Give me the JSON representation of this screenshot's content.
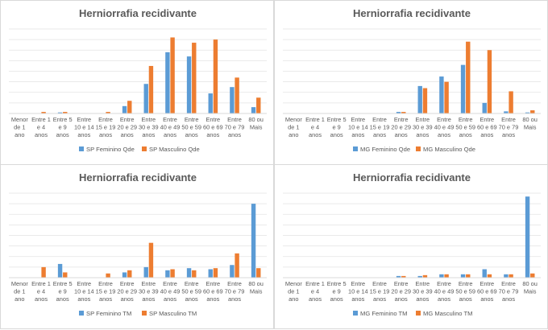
{
  "chart_data": [
    {
      "type": "bar",
      "title": "Herniorrafia recidivante",
      "categories": [
        [
          "Menor",
          "de 1",
          "ano"
        ],
        [
          "Entre 1",
          "e 4",
          "anos"
        ],
        [
          "Entre 5",
          "e 9",
          "anos"
        ],
        [
          "Entre",
          "10 e 14",
          "anos"
        ],
        [
          "Entre",
          "15 e 19",
          "anos"
        ],
        [
          "Entre",
          "20 e 29",
          "anos"
        ],
        [
          "Entre",
          "30 e 39",
          "anos"
        ],
        [
          "Entre",
          "40 e 49",
          "anos"
        ],
        [
          "Entre",
          "50 e 59",
          "anos"
        ],
        [
          "Entre",
          "60 e 69",
          "anos"
        ],
        [
          "Entre",
          "70 e 79",
          "anos"
        ],
        [
          "80 ou",
          "Mais"
        ]
      ],
      "series": [
        {
          "name": "SP Feminino Qde",
          "color": "#5b9bd5",
          "values": [
            0,
            0,
            1,
            0,
            0,
            7,
            28,
            58,
            54,
            19,
            25,
            6
          ]
        },
        {
          "name": "SP Masculino Qde",
          "color": "#ed7d31",
          "values": [
            0,
            1.5,
            1.5,
            0,
            1.5,
            12,
            45,
            72,
            67,
            70,
            34,
            15
          ]
        }
      ],
      "ylim": [
        0,
        80
      ],
      "grid": true,
      "legend": "bottom"
    },
    {
      "type": "bar",
      "title": "Herniorrafia recidivante",
      "categories": [
        [
          "Menor",
          "de 1",
          "ano"
        ],
        [
          "Entre 1",
          "e 4",
          "anos"
        ],
        [
          "Entre 5",
          "e 9",
          "anos"
        ],
        [
          "Entre",
          "10 e 14",
          "anos"
        ],
        [
          "Entre",
          "15 e 19",
          "anos"
        ],
        [
          "Entre",
          "20 e 29",
          "anos"
        ],
        [
          "Entre",
          "30 e 39",
          "anos"
        ],
        [
          "Entre",
          "40 e 49",
          "anos"
        ],
        [
          "Entre",
          "50 e 59",
          "anos"
        ],
        [
          "Entre",
          "60 e 69",
          "anos"
        ],
        [
          "Entre",
          "70 e 79",
          "anos"
        ],
        [
          "80 ou",
          "Mais"
        ]
      ],
      "series": [
        {
          "name": "MG Feminino Qde",
          "color": "#5b9bd5",
          "values": [
            0,
            0,
            0,
            0,
            0,
            1.5,
            26,
            35,
            46,
            10,
            2,
            1
          ]
        },
        {
          "name": "MG Masculino Qde",
          "color": "#ed7d31",
          "values": [
            0,
            0,
            0,
            0,
            0,
            1.5,
            24,
            30,
            68,
            60,
            21,
            3
          ]
        }
      ],
      "ylim": [
        0,
        80
      ],
      "grid": true,
      "legend": "bottom"
    },
    {
      "type": "bar",
      "title": "Herniorrafia recidivante",
      "categories": [
        [
          "Menor",
          "de 1",
          "ano"
        ],
        [
          "Entre 1",
          "e 4",
          "anos"
        ],
        [
          "Entre 5",
          "e 9",
          "anos"
        ],
        [
          "Entre",
          "10 e 14",
          "anos"
        ],
        [
          "Entre",
          "15 e 19",
          "anos"
        ],
        [
          "Entre",
          "20 e 29",
          "anos"
        ],
        [
          "Entre",
          "30 e 39",
          "anos"
        ],
        [
          "Entre",
          "40 e 49",
          "anos"
        ],
        [
          "Entre",
          "50 e 59",
          "anos"
        ],
        [
          "Entre",
          "60 e 69",
          "anos"
        ],
        [
          "Entre",
          "70 e 79",
          "anos"
        ],
        [
          "80 ou",
          "Mais"
        ]
      ],
      "series": [
        {
          "name": "SP Feminino TM",
          "color": "#5b9bd5",
          "values": [
            0,
            0,
            6.5,
            0,
            0,
            2.5,
            5,
            3.5,
            4.5,
            4,
            6,
            35
          ]
        },
        {
          "name": "SP Masculino TM",
          "color": "#ed7d31",
          "values": [
            0,
            5,
            2.5,
            0,
            2,
            3.5,
            16.5,
            4,
            3.5,
            4.5,
            11.5,
            4.5
          ]
        }
      ],
      "ylim": [
        0,
        40
      ],
      "grid": true,
      "legend": "bottom"
    },
    {
      "type": "bar",
      "title": "Herniorrafia recidivante",
      "categories": [
        [
          "Menor",
          "de 1",
          "ano"
        ],
        [
          "Entre 1",
          "e 4",
          "anos"
        ],
        [
          "Entre 5",
          "e 9",
          "anos"
        ],
        [
          "Entre",
          "10 e 14",
          "anos"
        ],
        [
          "Entre",
          "15 e 19",
          "anos"
        ],
        [
          "Entre",
          "20 e 29",
          "anos"
        ],
        [
          "Entre",
          "30 e 39",
          "anos"
        ],
        [
          "Entre",
          "40 e 49",
          "anos"
        ],
        [
          "Entre",
          "50 e 59",
          "anos"
        ],
        [
          "Entre",
          "60 e 69",
          "anos"
        ],
        [
          "Entre",
          "70 e 79",
          "anos"
        ],
        [
          "80 ou",
          "Mais"
        ]
      ],
      "series": [
        {
          "name": "MG Feminino TM",
          "color": "#5b9bd5",
          "values": [
            0,
            0,
            0,
            0,
            0,
            1,
            1,
            2,
            2,
            5,
            2,
            48
          ]
        },
        {
          "name": "MG Masculino TM",
          "color": "#ed7d31",
          "values": [
            0,
            0,
            0,
            0,
            0,
            1,
            1.5,
            2,
            2,
            2,
            2,
            2.5
          ]
        }
      ],
      "ylim": [
        0,
        50
      ],
      "grid": true,
      "legend": "bottom"
    }
  ]
}
